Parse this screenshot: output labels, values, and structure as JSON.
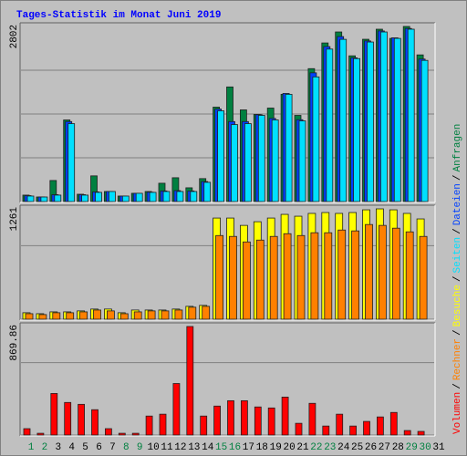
{
  "chart_data": [
    {
      "type": "bar",
      "title": "Tages-Statistik im Monat Juni 2019",
      "ylim": [
        0,
        2802
      ],
      "yticks": [
        2802
      ],
      "series": [
        {
          "name": "Anfragen",
          "color": "#008040",
          "values": [
            103,
            73,
            337,
            1306,
            117,
            411,
            161,
            88,
            132,
            161,
            293,
            381,
            220,
            367,
            1511,
            1834,
            1467,
            1394,
            1496,
            1716,
            1379,
            2127,
            2538,
            2714,
            2332,
            2597,
            2758,
            2611,
            2802,
            2347,
            null
          ]
        },
        {
          "name": "Dateien",
          "color": "#0040ff",
          "values": [
            95,
            73,
            110,
            1280,
            110,
            155,
            161,
            88,
            132,
            150,
            170,
            175,
            170,
            320,
            1480,
            1280,
            1280,
            1390,
            1330,
            1730,
            1310,
            2060,
            2480,
            2640,
            2300,
            2570,
            2730,
            2620,
            2770,
            2280,
            null
          ]
        },
        {
          "name": "Seiten",
          "color": "#00e0ff",
          "values": [
            88,
            73,
            103,
            1247,
            103,
            147,
            161,
            88,
            132,
            147,
            161,
            161,
            161,
            308,
            1452,
            1232,
            1247,
            1379,
            1306,
            1716,
            1291,
            1995,
            2440,
            2596,
            2288,
            2553,
            2714,
            2611,
            2758,
            2259,
            null
          ]
        }
      ]
    },
    {
      "type": "bar",
      "ylim": [
        0,
        1261
      ],
      "yticks": [
        1261
      ],
      "series": [
        {
          "name": "Besuche",
          "color": "#ffff00",
          "values": [
            74,
            63,
            84,
            84,
            95,
            116,
            116,
            74,
            105,
            105,
            105,
            116,
            147,
            158,
            1156,
            1156,
            1072,
            1114,
            1156,
            1198,
            1177,
            1209,
            1219,
            1209,
            1219,
            1250,
            1261,
            1250,
            1209,
            1146,
            null
          ]
        },
        {
          "name": "Rechner",
          "color": "#ff8000",
          "values": [
            63,
            53,
            74,
            74,
            84,
            105,
            95,
            63,
            84,
            95,
            95,
            105,
            137,
            147,
            956,
            946,
            883,
            904,
            946,
            977,
            956,
            988,
            988,
            1019,
            1009,
            1082,
            1072,
            1040,
            998,
            946,
            null
          ]
        }
      ]
    },
    {
      "type": "bar",
      "ylim": [
        0,
        869.86
      ],
      "yticks": [
        869.86
      ],
      "categories": [
        "1",
        "2",
        "3",
        "4",
        "5",
        "6",
        "7",
        "8",
        "9",
        "10",
        "11",
        "12",
        "13",
        "14",
        "15",
        "16",
        "17",
        "18",
        "19",
        "20",
        "21",
        "22",
        "23",
        "24",
        "25",
        "26",
        "27",
        "28",
        "29",
        "30",
        "31"
      ],
      "category_colors": [
        "#008040",
        "#008040",
        "#000000",
        "#000000",
        "#000000",
        "#000000",
        "#000000",
        "#008040",
        "#008040",
        "#000000",
        "#000000",
        "#000000",
        "#000000",
        "#000000",
        "#008040",
        "#008040",
        "#000000",
        "#000000",
        "#000000",
        "#000000",
        "#000000",
        "#008040",
        "#008040",
        "#000000",
        "#000000",
        "#000000",
        "#000000",
        "#000000",
        "#008040",
        "#008040",
        "#000000"
      ],
      "legend_separator": "/",
      "series": [
        {
          "name": "Volumen",
          "color": "#ff0000",
          "values": [
            51,
            14,
            333,
            261,
            246,
            203,
            51,
            14,
            14,
            152,
            167,
            413,
            869.86,
            152,
            232,
            275,
            275,
            225,
            217,
            304,
            94,
            254,
            72,
            167,
            72,
            109,
            145,
            181,
            36,
            29,
            null
          ]
        }
      ]
    }
  ]
}
